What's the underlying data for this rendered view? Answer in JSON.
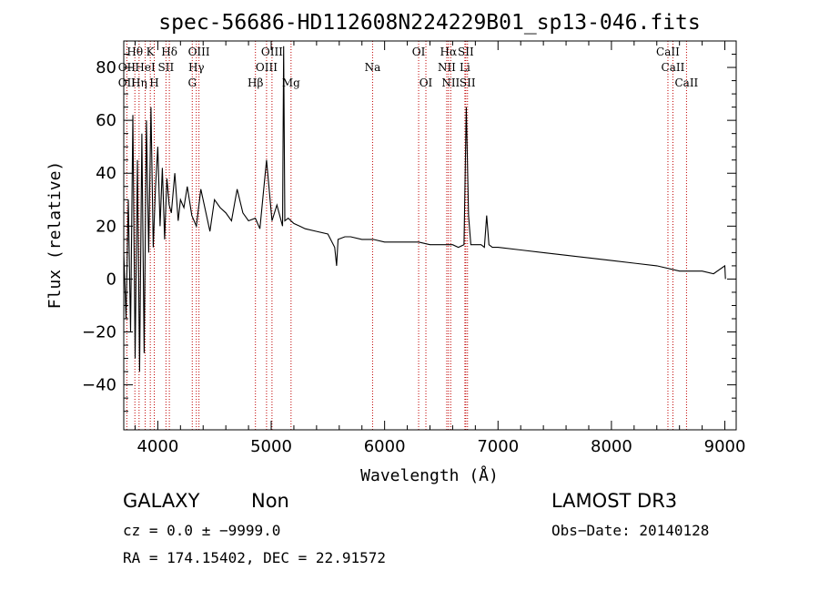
{
  "chart_data": {
    "type": "line",
    "title": "spec-56686-HD112608N224229B01_sp13-046.fits",
    "xlabel": "Wavelength (Å)",
    "ylabel": "Flux (relative)",
    "xlim": [
      3700,
      9100
    ],
    "ylim": [
      -57,
      90
    ],
    "xticks": [
      4000,
      5000,
      6000,
      7000,
      8000,
      9000
    ],
    "yticks": [
      -40,
      -20,
      0,
      20,
      40,
      60,
      80
    ],
    "tick_labels_x": [
      "4000",
      "5000",
      "6000",
      "7000",
      "8000",
      "9000"
    ],
    "tick_labels_y": [
      "−40",
      "−20",
      "0",
      "20",
      "40",
      "60",
      "80"
    ],
    "series": [
      {
        "name": "spectrum",
        "x": [
          3700,
          3720,
          3740,
          3760,
          3780,
          3800,
          3820,
          3840,
          3860,
          3880,
          3900,
          3920,
          3940,
          3960,
          3980,
          4000,
          4020,
          4040,
          4060,
          4080,
          4100,
          4120,
          4150,
          4180,
          4200,
          4230,
          4260,
          4300,
          4340,
          4380,
          4420,
          4460,
          4500,
          4550,
          4600,
          4650,
          4700,
          4750,
          4800,
          4860,
          4900,
          4959,
          5007,
          5050,
          5100,
          5110,
          5120,
          5150,
          5200,
          5250,
          5300,
          5400,
          5500,
          5560,
          5577,
          5590,
          5650,
          5700,
          5800,
          5900,
          6000,
          6100,
          6200,
          6300,
          6400,
          6500,
          6563,
          6600,
          6650,
          6700,
          6720,
          6740,
          6760,
          6780,
          6800,
          6850,
          6880,
          6900,
          6920,
          6950,
          7000,
          7200,
          7400,
          7600,
          7800,
          8000,
          8200,
          8400,
          8600,
          8700,
          8800,
          8900,
          9000,
          9005
        ],
        "y": [
          10,
          -15,
          30,
          -20,
          62,
          -30,
          45,
          -35,
          55,
          -28,
          60,
          10,
          65,
          12,
          35,
          50,
          20,
          42,
          15,
          38,
          28,
          25,
          40,
          22,
          30,
          27,
          35,
          24,
          20,
          34,
          26,
          18,
          30,
          27,
          25,
          22,
          34,
          25,
          22,
          23,
          19,
          45,
          22,
          28,
          20,
          88,
          22,
          23,
          21,
          20,
          19,
          18,
          17,
          12,
          5,
          15,
          16,
          16,
          15,
          15,
          14,
          14,
          14,
          14,
          13,
          13,
          13,
          13,
          12,
          13,
          65,
          24,
          13,
          13,
          13,
          13,
          12,
          24,
          13,
          12,
          12,
          11,
          10,
          9,
          8,
          7,
          6,
          5,
          3,
          3,
          3,
          2,
          5,
          0
        ]
      }
    ],
    "emission_lines": [
      {
        "label": "OII",
        "x": 3727,
        "row": 2
      },
      {
        "label": "OII",
        "x": 3727,
        "row": 1
      },
      {
        "label": "Hθ",
        "x": 3798,
        "row": 0
      },
      {
        "label": "Hη",
        "x": 3835,
        "row": 2
      },
      {
        "label": "HeI",
        "x": 3889,
        "row": 1
      },
      {
        "label": "K",
        "x": 3934,
        "row": 0
      },
      {
        "label": "H",
        "x": 3969,
        "row": 2
      },
      {
        "label": "SII",
        "x": 4072,
        "row": 1
      },
      {
        "label": "Hδ",
        "x": 4102,
        "row": 0
      },
      {
        "label": "OIII",
        "x": 4363,
        "row": 0
      },
      {
        "label": "Hγ",
        "x": 4340,
        "row": 1
      },
      {
        "label": "G",
        "x": 4304,
        "row": 2
      },
      {
        "label": "Hβ",
        "x": 4861,
        "row": 2
      },
      {
        "label": "OIII",
        "x": 4959,
        "row": 1
      },
      {
        "label": "OIII",
        "x": 5007,
        "row": 0
      },
      {
        "label": "Mg",
        "x": 5175,
        "row": 2
      },
      {
        "label": "Na",
        "x": 5894,
        "row": 1
      },
      {
        "label": "OI",
        "x": 6300,
        "row": 0
      },
      {
        "label": "OI",
        "x": 6364,
        "row": 2
      },
      {
        "label": "NII",
        "x": 6548,
        "row": 1
      },
      {
        "label": "Hα",
        "x": 6563,
        "row": 0
      },
      {
        "label": "NII",
        "x": 6583,
        "row": 2
      },
      {
        "label": "SII",
        "x": 6716,
        "row": 0
      },
      {
        "label": "Li",
        "x": 6708,
        "row": 1
      },
      {
        "label": "SII",
        "x": 6731,
        "row": 2
      },
      {
        "label": "CaII",
        "x": 8498,
        "row": 0
      },
      {
        "label": "CaII",
        "x": 8542,
        "row": 1
      },
      {
        "label": "CaII",
        "x": 8662,
        "row": 2
      }
    ],
    "line_markers_x": [
      3727,
      3798,
      3835,
      3889,
      3934,
      3969,
      4072,
      4102,
      4304,
      4340,
      4363,
      4861,
      4959,
      5007,
      5175,
      5894,
      6300,
      6364,
      6548,
      6563,
      6583,
      6708,
      6716,
      6731,
      8498,
      8542,
      8662
    ]
  },
  "info": {
    "class": "GALAXY",
    "subclass": "Non",
    "survey": "LAMOST DR3",
    "cz": "cz = 0.0 ± −9999.0",
    "obs_date": "Obs−Date: 20140128",
    "radec": "RA = 174.15402, DEC =  22.91572"
  }
}
